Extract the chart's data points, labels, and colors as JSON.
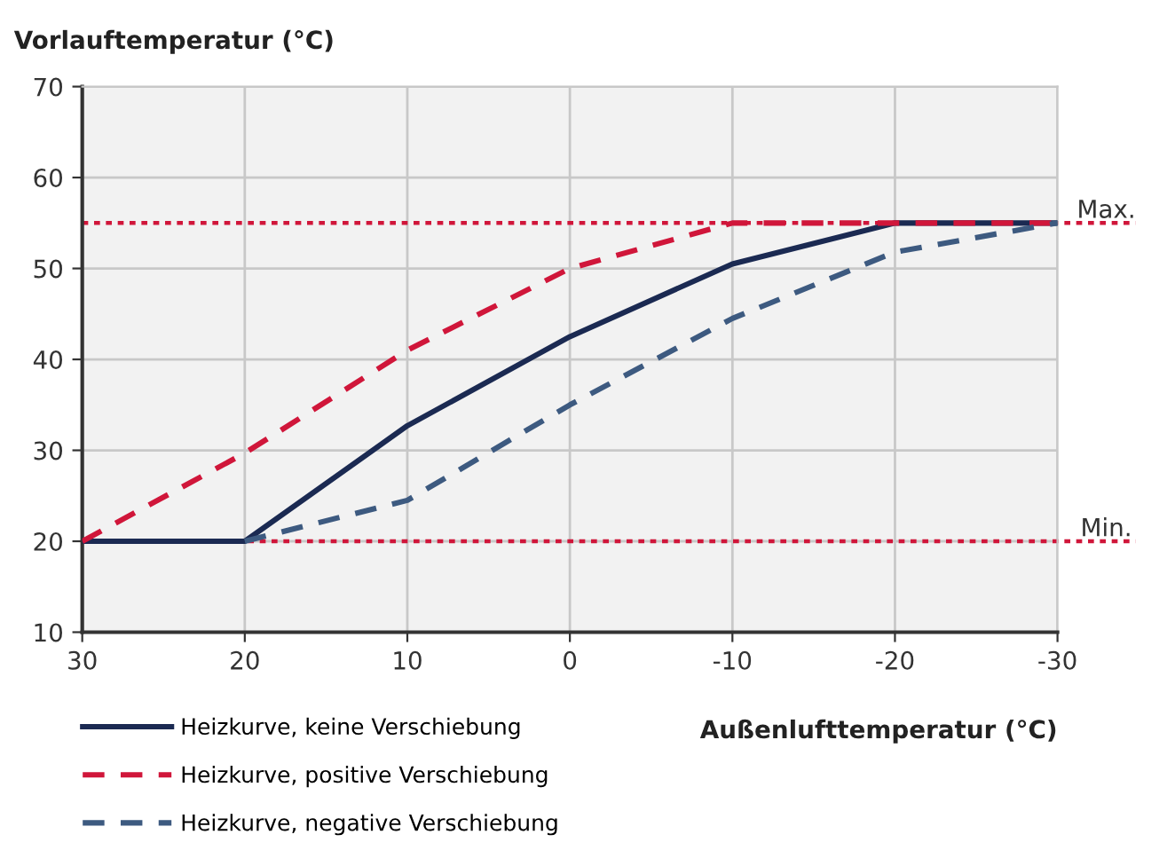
{
  "chart_data": {
    "type": "line",
    "xlabel": "Außenlufttemperatur (°C)",
    "ylabel": "Vorlauftemperatur (°C)",
    "x": [
      30,
      20,
      10,
      0,
      -10,
      -20,
      -30
    ],
    "series": [
      {
        "name": "Heizkurve, keine Verschiebung",
        "color": "#1b2a52",
        "line_style": "solid",
        "values": [
          20,
          20,
          32.7,
          42.5,
          50.5,
          55,
          55
        ]
      },
      {
        "name": "Heizkurve, positive Verschiebung",
        "color": "#d0163a",
        "line_style": "dashed",
        "values": [
          20,
          29.7,
          41,
          50,
          55,
          55,
          55
        ]
      },
      {
        "name": "Heizkurve, negative Verschiebung",
        "color": "#3d5a80",
        "line_style": "dashed",
        "x": [
          20,
          10,
          0,
          -10,
          -20,
          -30
        ],
        "values": [
          20,
          24.5,
          35,
          44.5,
          51.8,
          55
        ]
      }
    ],
    "xlim": [
      30,
      -30
    ],
    "xticks": [
      30,
      20,
      10,
      0,
      -10,
      -20,
      -30
    ],
    "ylim": [
      10,
      70
    ],
    "yticks": [
      10,
      20,
      30,
      40,
      50,
      60,
      70
    ],
    "ref_lines": [
      {
        "axis": "y",
        "value": 55,
        "label": "Max.",
        "color": "#d0163a",
        "line_style": "dotted"
      },
      {
        "axis": "y",
        "value": 20,
        "label": "Min.",
        "color": "#d0163a",
        "line_style": "dotted"
      }
    ],
    "grid": true,
    "legend": "bottom",
    "marker": "none"
  }
}
